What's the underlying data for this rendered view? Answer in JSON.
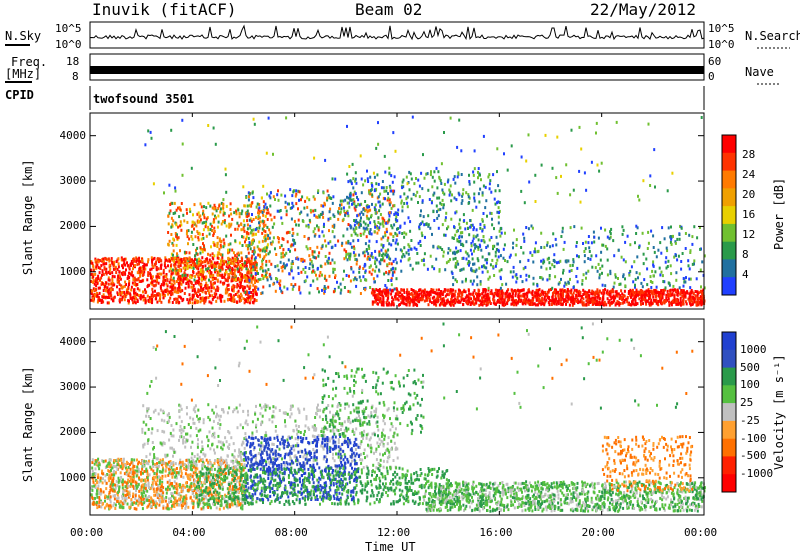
{
  "header": {
    "station": "Inuvik (fitACF)",
    "beam": "Beam 02",
    "date": "22/May/2012"
  },
  "top_panels": {
    "nsky_label": "N.Sky",
    "nsky_ticks": [
      "10^5",
      "10^0"
    ],
    "nsearch_label": "N.Search",
    "freq_label_1": "Freq.",
    "freq_label_2": "[MHz]",
    "freq_ticks": [
      "18",
      "8"
    ],
    "nave_label": "Nave",
    "nave_ticks": [
      "60",
      "0"
    ],
    "cpid_label": "CPID",
    "cpid_value": "twofsound 3501"
  },
  "chart_data": [
    {
      "type": "heatmap",
      "title": "",
      "xlabel": "",
      "ylabel": "Slant Range [km]",
      "ylim": [
        180,
        4500
      ],
      "yticks": [
        "1000",
        "2000",
        "3000",
        "4000"
      ],
      "colorbar_label": "Power [dB]",
      "colorbar_ticks": [
        "28",
        "24",
        "20",
        "16",
        "12",
        "8",
        "4"
      ],
      "colorbar_colors": [
        "#ff0000",
        "#ff3300",
        "#ff7a00",
        "#f0a000",
        "#e8d000",
        "#70c030",
        "#2a9a4a",
        "#2070a0",
        "#2040ff"
      ]
    },
    {
      "type": "heatmap",
      "title": "",
      "xlabel": "Time UT",
      "ylabel": "Slant Range [km]",
      "ylim": [
        180,
        4500
      ],
      "yticks": [
        "1000",
        "2000",
        "3000",
        "4000"
      ],
      "xticks": [
        "00:00",
        "04:00",
        "08:00",
        "12:00",
        "16:00",
        "20:00",
        "00:00"
      ],
      "colorbar_label": "Velocity [m s⁻¹]",
      "colorbar_ticks": [
        "1000",
        "500",
        "100",
        "25",
        "-25",
        "-100",
        "-500",
        "-1000"
      ],
      "colorbar_colors": [
        "#2040d0",
        "#3050c0",
        "#2a9a4a",
        "#55c040",
        "#c0c0c0",
        "#ffa030",
        "#ff7000",
        "#ff2000",
        "#ff0000"
      ]
    }
  ]
}
